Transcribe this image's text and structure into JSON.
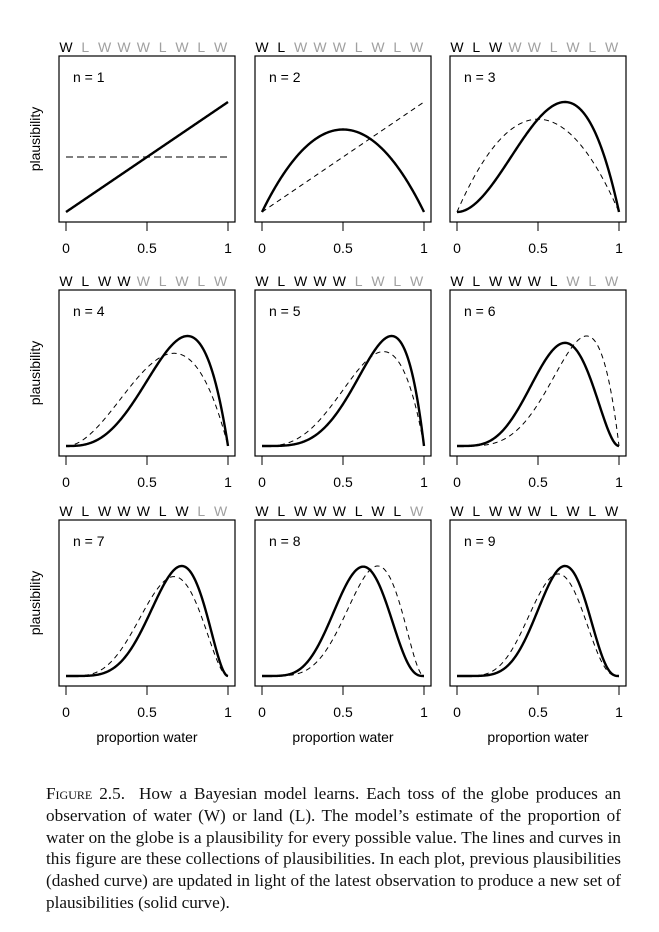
{
  "chart_data": {
    "type": "line",
    "title": "",
    "sequence": [
      "W",
      "L",
      "W",
      "W",
      "W",
      "L",
      "W",
      "L",
      "W"
    ],
    "observed_color": "#000000",
    "unobserved_color": "#a0a0a0",
    "xlabel": "proportion water",
    "ylabel": "plausibility",
    "xlim": [
      0,
      1
    ],
    "x_ticks": [
      "0",
      "0.5",
      "1"
    ],
    "x_tick_values": [
      0,
      0.5,
      1
    ],
    "legend": {
      "dashed": "previous plausibilities",
      "solid": "updated plausibilities"
    },
    "grid": false,
    "panels": [
      {
        "label": "n = 1",
        "n": 1,
        "water": 1,
        "land": 0,
        "prev_water": 0,
        "prev_land": 0
      },
      {
        "label": "n = 2",
        "n": 2,
        "water": 1,
        "land": 1,
        "prev_water": 1,
        "prev_land": 0
      },
      {
        "label": "n = 3",
        "n": 3,
        "water": 2,
        "land": 1,
        "prev_water": 1,
        "prev_land": 1
      },
      {
        "label": "n = 4",
        "n": 4,
        "water": 3,
        "land": 1,
        "prev_water": 2,
        "prev_land": 1
      },
      {
        "label": "n = 5",
        "n": 5,
        "water": 4,
        "land": 1,
        "prev_water": 3,
        "prev_land": 1
      },
      {
        "label": "n = 6",
        "n": 6,
        "water": 4,
        "land": 2,
        "prev_water": 4,
        "prev_land": 1
      },
      {
        "label": "n = 7",
        "n": 7,
        "water": 5,
        "land": 2,
        "prev_water": 4,
        "prev_land": 2
      },
      {
        "label": "n = 8",
        "n": 8,
        "water": 5,
        "land": 3,
        "prev_water": 5,
        "prev_land": 2
      },
      {
        "label": "n = 9",
        "n": 9,
        "water": 6,
        "land": 3,
        "prev_water": 5,
        "prev_land": 3
      }
    ]
  },
  "caption": {
    "figure_label": "Figure 2.5.",
    "text": "How a Bayesian model learns. Each toss of the globe produces an observation of water (W) or land (L). The model’s estimate of the proportion of water on the globe is a plausibility for every possible value. The lines and curves in this figure are these collections of plausibilities. In each plot, previous plausibilities (dashed curve) are updated in light of the latest observation to produce a new set of plausibilities (solid curve)."
  }
}
